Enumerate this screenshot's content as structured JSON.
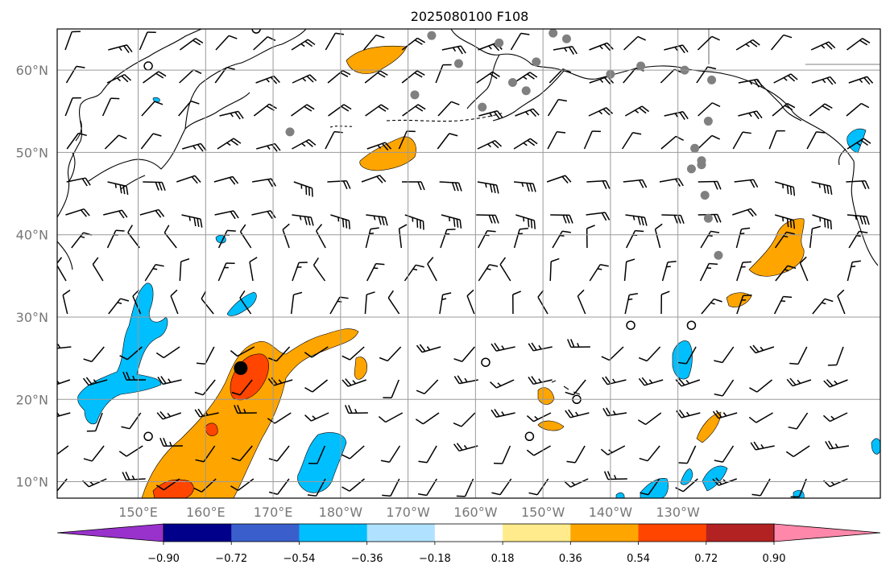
{
  "title": "2025080100 F108",
  "map": {
    "lon_range": [
      140,
      262
    ],
    "lat_range": [
      8,
      65
    ],
    "lat_labels": [
      "10°N",
      "20°N",
      "30°N",
      "40°N",
      "50°N",
      "60°N"
    ],
    "lat_values": [
      10,
      20,
      30,
      40,
      50,
      60
    ],
    "lon_labels": [
      "150°E",
      "160°E",
      "170°E",
      "180°W",
      "170°W",
      "160°W",
      "150°W",
      "140°W",
      "130°W"
    ],
    "lon_values": [
      152,
      162,
      172,
      182,
      192,
      202,
      212,
      222,
      232
    ],
    "gridlines": true
  },
  "colorbar": {
    "colors": [
      "#9932cc",
      "#00008b",
      "#3a5fcd",
      "#00bfff",
      "#b0e2ff",
      "#ffffff",
      "#ffeb8b",
      "#ffa500",
      "#ff4500",
      "#b22222",
      "#ff88aa"
    ],
    "tick_labels": [
      "−0.90",
      "−0.72",
      "−0.54",
      "−0.36",
      "−0.18",
      "0.18",
      "0.36",
      "0.54",
      "0.72",
      "0.90"
    ],
    "extend": "both"
  },
  "features": {
    "marker_black": {
      "lon": 167.2,
      "lat": 23.8
    },
    "station_dots_gray": [
      [
        195.5,
        64.2
      ],
      [
        205.5,
        63.3
      ],
      [
        213.5,
        64.5
      ],
      [
        215.5,
        63.8
      ],
      [
        199.5,
        60.8
      ],
      [
        207.5,
        58.5
      ],
      [
        209.5,
        57.5
      ],
      [
        211,
        61
      ],
      [
        203,
        55.5
      ],
      [
        193,
        57
      ],
      [
        226.5,
        60.5
      ],
      [
        222,
        59.5
      ],
      [
        233,
        60
      ],
      [
        237,
        58.8
      ],
      [
        236.5,
        53.8
      ],
      [
        234.5,
        50.5
      ],
      [
        235.5,
        49
      ],
      [
        234,
        48
      ],
      [
        236,
        44.8
      ],
      [
        236.5,
        42
      ],
      [
        235.5,
        48.5
      ],
      [
        238,
        37.5
      ],
      [
        174.5,
        52.5
      ]
    ],
    "calm_circles": [
      [
        153.5,
        60.5
      ],
      [
        153.5,
        15.5
      ],
      [
        203.5,
        24.5
      ],
      [
        210,
        15.5
      ],
      [
        217,
        20
      ],
      [
        225,
        29
      ],
      [
        234,
        29
      ],
      [
        169.5,
        65
      ]
    ]
  }
}
